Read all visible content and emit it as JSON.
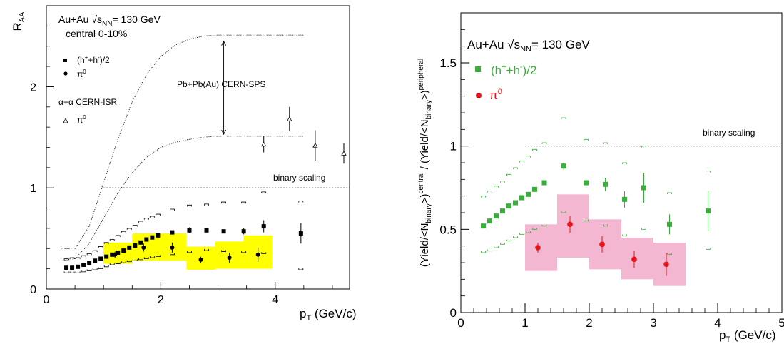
{
  "colors": {
    "band_left": "#ffff00",
    "band_right": "#f4b7d2",
    "green": "#3aae3a",
    "red": "#e8141c",
    "black": "#000000"
  },
  "chart_data": [
    {
      "type": "scatter",
      "title": "",
      "ylabel": "R",
      "ylabel_sub": "AA",
      "xlabel": "p",
      "xlabel_sub": "T",
      "xlabel_unit": " (GeV/c)",
      "xlim": [
        0,
        5.3
      ],
      "ylim": [
        0,
        2.8
      ],
      "xticks": [
        0,
        2,
        4
      ],
      "yticks": [
        0,
        1,
        2
      ],
      "legend": {
        "system": "Au+Au ",
        "sqrt": "√s",
        "sqrt_sub": "NN",
        "energy": "= 130 GeV",
        "centrality": "central 0-10%",
        "h_base": "(h",
        "h_sup1": "+",
        "h_mid": "+h",
        "h_sup2": "-",
        "h_end": ")/2",
        "pi": "π",
        "pi_sup": "0",
        "isr_label": "α+α CERN-ISR",
        "isr_pi": "π",
        "isr_pi_sup": "0"
      },
      "annotations": {
        "sps": "Pb+Pb(Au) CERN-SPS",
        "binary": "binary scaling"
      },
      "binary_line": {
        "x": [
          1.0,
          5.3
        ],
        "y": 1.0
      },
      "sps_upper": {
        "x": [
          0.25,
          0.5,
          0.75,
          1.0,
          1.25,
          1.5,
          1.75,
          2.0,
          2.25,
          2.5,
          2.75,
          3.0,
          3.25,
          3.5,
          3.75,
          4.0,
          4.5
        ],
        "y": [
          0.4,
          0.4,
          0.62,
          1.05,
          1.48,
          1.85,
          2.12,
          2.3,
          2.41,
          2.47,
          2.5,
          2.51,
          2.51,
          2.51,
          2.51,
          2.51,
          2.51
        ]
      },
      "sps_lower": {
        "x": [
          0.25,
          0.5,
          0.75,
          1.0,
          1.25,
          1.5,
          1.75,
          2.0,
          2.25,
          2.5,
          2.75,
          3.0,
          3.25,
          3.5,
          3.75,
          4.0,
          4.5
        ],
        "y": [
          0.28,
          0.3,
          0.45,
          0.7,
          0.95,
          1.15,
          1.3,
          1.4,
          1.45,
          1.48,
          1.5,
          1.51,
          1.51,
          1.51,
          1.51,
          1.51,
          1.51
        ]
      },
      "sps_arrow": {
        "x": 3.1,
        "y": [
          2.45,
          1.53
        ]
      },
      "h_bands": [
        {
          "x": 0.35,
          "lo": 0.16,
          "hi": 0.3
        },
        {
          "x": 0.45,
          "lo": 0.16,
          "hi": 0.31
        },
        {
          "x": 0.55,
          "lo": 0.16,
          "hi": 0.31
        },
        {
          "x": 0.65,
          "lo": 0.17,
          "hi": 0.33
        },
        {
          "x": 0.75,
          "lo": 0.18,
          "hi": 0.35
        },
        {
          "x": 0.85,
          "lo": 0.19,
          "hi": 0.38
        },
        {
          "x": 0.95,
          "lo": 0.2,
          "hi": 0.42
        },
        {
          "x": 1.05,
          "lo": 0.22,
          "hi": 0.46
        },
        {
          "x": 1.15,
          "lo": 0.24,
          "hi": 0.49
        },
        {
          "x": 1.25,
          "lo": 0.25,
          "hi": 0.53
        },
        {
          "x": 1.35,
          "lo": 0.26,
          "hi": 0.57
        },
        {
          "x": 1.45,
          "lo": 0.27,
          "hi": 0.6
        },
        {
          "x": 1.55,
          "lo": 0.28,
          "hi": 0.63
        },
        {
          "x": 1.65,
          "lo": 0.29,
          "hi": 0.67
        },
        {
          "x": 1.75,
          "lo": 0.3,
          "hi": 0.7
        },
        {
          "x": 1.85,
          "lo": 0.31,
          "hi": 0.72
        },
        {
          "x": 1.95,
          "lo": 0.32,
          "hi": 0.74
        },
        {
          "x": 2.2,
          "lo": 0.34,
          "hi": 0.79
        },
        {
          "x": 2.5,
          "lo": 0.36,
          "hi": 0.83
        },
        {
          "x": 2.8,
          "lo": 0.38,
          "hi": 0.84
        },
        {
          "x": 3.1,
          "lo": 0.37,
          "hi": 0.86
        },
        {
          "x": 3.45,
          "lo": 0.36,
          "hi": 0.86
        },
        {
          "x": 3.8,
          "lo": 0.35,
          "hi": 0.96
        },
        {
          "x": 4.45,
          "lo": 0.19,
          "hi": 0.87
        }
      ],
      "h_data": {
        "x": [
          0.35,
          0.45,
          0.55,
          0.65,
          0.75,
          0.85,
          0.95,
          1.05,
          1.15,
          1.25,
          1.35,
          1.45,
          1.55,
          1.65,
          1.75,
          1.85,
          1.95,
          2.2,
          2.5,
          2.8,
          3.1,
          3.45,
          3.8,
          4.45
        ],
        "y": [
          0.21,
          0.21,
          0.22,
          0.24,
          0.26,
          0.28,
          0.3,
          0.32,
          0.34,
          0.36,
          0.38,
          0.41,
          0.43,
          0.46,
          0.49,
          0.51,
          0.53,
          0.56,
          0.58,
          0.58,
          0.57,
          0.57,
          0.62,
          0.55
        ],
        "err": [
          0,
          0,
          0,
          0,
          0,
          0,
          0,
          0,
          0,
          0,
          0,
          0,
          0,
          0,
          0,
          0,
          0,
          0,
          0.03,
          0,
          0,
          0.03,
          0.06,
          0.1
        ]
      },
      "pi_boxes": [
        {
          "x0": 1.0,
          "x1": 1.5,
          "y0": 0.25,
          "y1": 0.46
        },
        {
          "x0": 1.5,
          "x1": 2.45,
          "y0": 0.28,
          "y1": 0.55
        },
        {
          "x0": 2.45,
          "x1": 2.95,
          "y0": 0.19,
          "y1": 0.42
        },
        {
          "x0": 2.95,
          "x1": 3.45,
          "y0": 0.2,
          "y1": 0.47
        },
        {
          "x0": 3.45,
          "x1": 3.95,
          "y0": 0.2,
          "y1": 0.53
        }
      ],
      "pi_data": {
        "x": [
          1.2,
          1.7,
          2.2,
          2.7,
          3.2,
          3.7
        ],
        "y": [
          0.34,
          0.41,
          0.41,
          0.29,
          0.31,
          0.34
        ],
        "err": [
          0.03,
          0.04,
          0.05,
          0.03,
          0.05,
          0.07
        ]
      },
      "isr_data": {
        "x": [
          3.8,
          4.25,
          4.7,
          5.2
        ],
        "y": [
          1.43,
          1.68,
          1.42,
          1.34
        ],
        "err": [
          0.08,
          0.12,
          0.15,
          0.1
        ]
      }
    },
    {
      "type": "scatter",
      "title": "",
      "ylabel": "(Yield/<N",
      "ylabel_sub1": "binary",
      "ylabel_mid1": ">)",
      "ylabel_sup1": "central",
      "ylabel_mid2": " / (Yield/<N",
      "ylabel_sub2": "binary",
      "ylabel_mid3": ">)",
      "ylabel_sup2": "peripheral",
      "xlabel": "p",
      "xlabel_sub": "T",
      "xlabel_unit": " (GeV/c)",
      "xlim": [
        0,
        5
      ],
      "ylim": [
        0,
        1.8
      ],
      "xticks": [
        0,
        1,
        2,
        3,
        4,
        5
      ],
      "yticks": [
        0,
        0.5,
        1,
        1.5
      ],
      "ytick_labels": [
        "0",
        "0.5",
        "1",
        "1.5"
      ],
      "legend": {
        "system": "Au+Au ",
        "sqrt": "√s",
        "sqrt_sub": "NN",
        "energy": "= 130 GeV",
        "h_base": "(h",
        "h_sup1": "+",
        "h_mid": "+h",
        "h_sup2": "-",
        "h_end": ")/2",
        "pi": "π",
        "pi_sup": "0"
      },
      "annotations": {
        "binary": "binary scaling"
      },
      "binary_line": {
        "x": [
          1.0,
          5.0
        ],
        "y": 1.0
      },
      "h_bands": [
        {
          "x": 0.35,
          "lo": 0.36,
          "hi": 0.7
        },
        {
          "x": 0.45,
          "lo": 0.37,
          "hi": 0.73
        },
        {
          "x": 0.55,
          "lo": 0.39,
          "hi": 0.76
        },
        {
          "x": 0.65,
          "lo": 0.41,
          "hi": 0.79
        },
        {
          "x": 0.75,
          "lo": 0.43,
          "hi": 0.83
        },
        {
          "x": 0.85,
          "lo": 0.45,
          "hi": 0.87
        },
        {
          "x": 0.95,
          "lo": 0.47,
          "hi": 0.91
        },
        {
          "x": 1.05,
          "lo": 0.48,
          "hi": 0.94
        },
        {
          "x": 1.15,
          "lo": 0.5,
          "hi": 0.98
        },
        {
          "x": 1.3,
          "lo": 0.52,
          "hi": 1.02
        },
        {
          "x": 1.6,
          "lo": 0.6,
          "hi": 1.17
        },
        {
          "x": 1.95,
          "lo": 0.55,
          "hi": 1.04
        },
        {
          "x": 2.25,
          "lo": 0.52,
          "hi": 1.02
        },
        {
          "x": 2.55,
          "lo": 0.46,
          "hi": 0.9
        },
        {
          "x": 2.85,
          "lo": 0.5,
          "hi": 1.0
        },
        {
          "x": 3.25,
          "lo": 0.35,
          "hi": 0.72
        },
        {
          "x": 3.85,
          "lo": 0.38,
          "hi": 0.85
        }
      ],
      "h_data": {
        "x": [
          0.35,
          0.45,
          0.55,
          0.65,
          0.75,
          0.85,
          0.95,
          1.05,
          1.15,
          1.3,
          1.6,
          1.95,
          2.25,
          2.55,
          2.85,
          3.25,
          3.85
        ],
        "y": [
          0.52,
          0.55,
          0.58,
          0.61,
          0.64,
          0.66,
          0.69,
          0.71,
          0.74,
          0.78,
          0.88,
          0.78,
          0.77,
          0.68,
          0.75,
          0.53,
          0.61
        ],
        "err": [
          0,
          0,
          0,
          0,
          0,
          0,
          0,
          0,
          0,
          0,
          0.02,
          0.03,
          0.04,
          0.05,
          0.09,
          0.06,
          0.12
        ]
      },
      "pi_boxes": [
        {
          "x0": 1.0,
          "x1": 1.5,
          "y0": 0.25,
          "y1": 0.53
        },
        {
          "x0": 1.5,
          "x1": 2.0,
          "y0": 0.33,
          "y1": 0.71
        },
        {
          "x0": 2.0,
          "x1": 2.5,
          "y0": 0.26,
          "y1": 0.56
        },
        {
          "x0": 2.5,
          "x1": 3.0,
          "y0": 0.2,
          "y1": 0.45
        },
        {
          "x0": 3.0,
          "x1": 3.5,
          "y0": 0.16,
          "y1": 0.42
        }
      ],
      "pi_data": {
        "x": [
          1.2,
          1.7,
          2.2,
          2.7,
          3.2
        ],
        "y": [
          0.39,
          0.53,
          0.41,
          0.32,
          0.29
        ],
        "err": [
          0.03,
          0.05,
          0.05,
          0.05,
          0.07
        ]
      }
    }
  ]
}
